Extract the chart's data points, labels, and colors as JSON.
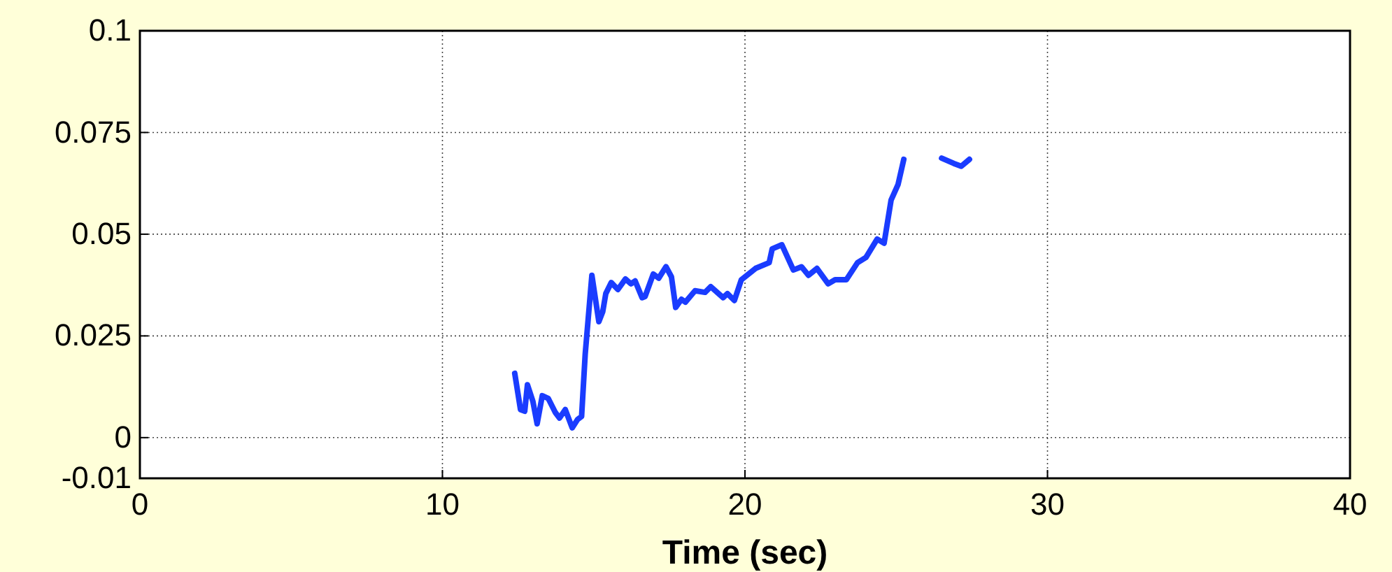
{
  "chart_data": {
    "type": "line",
    "xlabel": "Time (sec)",
    "x": [
      12.39,
      12.58,
      12.72,
      12.81,
      12.99,
      13.13,
      13.3,
      13.5,
      13.73,
      13.87,
      14.06,
      14.29,
      14.47,
      14.6,
      14.72,
      14.94,
      15.17,
      15.3,
      15.4,
      15.58,
      15.8,
      16.05,
      16.23,
      16.37,
      16.6,
      16.7,
      16.97,
      17.15,
      17.39,
      17.57,
      17.71,
      17.9,
      18.03,
      18.35,
      18.68,
      18.87,
      19.28,
      19.42,
      19.65,
      19.88,
      20.35,
      20.8,
      20.9,
      21.22,
      21.6,
      21.87,
      22.1,
      22.38,
      22.75,
      22.98,
      23.35,
      23.72,
      24.0,
      24.37,
      24.6,
      24.83,
      25.06,
      25.25
    ],
    "series": [
      {
        "color": "#1a3cff",
        "values": [
          0.0158,
          0.0069,
          0.0065,
          0.013,
          0.0089,
          0.0034,
          0.0103,
          0.0096,
          0.0062,
          0.0048,
          0.0069,
          0.0024,
          0.0045,
          0.0052,
          0.0206,
          0.0399,
          0.0285,
          0.031,
          0.0354,
          0.0381,
          0.0364,
          0.039,
          0.0378,
          0.0385,
          0.0344,
          0.0347,
          0.0402,
          0.0392,
          0.042,
          0.0395,
          0.032,
          0.034,
          0.0333,
          0.0361,
          0.0357,
          0.0371,
          0.0344,
          0.0354,
          0.0337,
          0.0388,
          0.0416,
          0.043,
          0.0464,
          0.0474,
          0.0412,
          0.042,
          0.0399,
          0.0416,
          0.0378,
          0.0388,
          0.0388,
          0.043,
          0.0443,
          0.0488,
          0.0478,
          0.0584,
          0.0622,
          0.0684
        ]
      },
      {
        "color": "#1a3cff",
        "x": [
          26.5,
          26.9,
          27.15,
          27.42
        ],
        "values": [
          0.0687,
          0.0674,
          0.0667,
          0.0684
        ]
      }
    ],
    "xlim": [
      0,
      40
    ],
    "xticks": [
      0,
      10,
      20,
      30,
      40
    ],
    "ylim": [
      -0.01,
      0.1
    ],
    "yticks": [
      -0.01,
      0,
      0.025,
      0.05,
      0.075,
      0.1
    ],
    "grid": true,
    "line_style": "solid",
    "marker": "none"
  }
}
